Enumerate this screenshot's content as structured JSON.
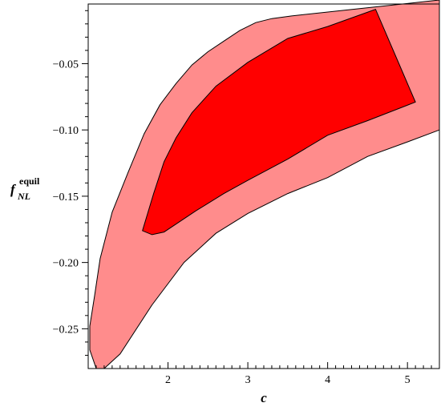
{
  "chart_data": {
    "type": "area",
    "xlabel": "c",
    "ylabel": {
      "base": "f",
      "superscript": "equil",
      "subscript": "NL"
    },
    "xlim": [
      1.0,
      5.4
    ],
    "ylim": [
      -0.28,
      -0.005
    ],
    "xticks": [
      2,
      3,
      4,
      5
    ],
    "yticks": [
      -0.05,
      -0.1,
      -0.15,
      -0.2,
      -0.25
    ],
    "xtick_labels": [
      "2",
      "3",
      "4",
      "5"
    ],
    "ytick_labels": [
      "−0.05",
      "−0.10",
      "−0.15",
      "−0.20",
      "−0.25"
    ],
    "grid": false,
    "series": [
      {
        "fill": "#ff8c8c",
        "points": [
          [
            1.1,
            -0.28
          ],
          [
            1.2,
            -0.28
          ],
          [
            1.4,
            -0.269
          ],
          [
            1.8,
            -0.232
          ],
          [
            2.2,
            -0.2
          ],
          [
            2.6,
            -0.178
          ],
          [
            3.0,
            -0.163
          ],
          [
            3.5,
            -0.148
          ],
          [
            4.0,
            -0.136
          ],
          [
            4.5,
            -0.12
          ],
          [
            5.0,
            -0.109
          ],
          [
            5.4,
            -0.1
          ],
          [
            5.4,
            -0.002
          ],
          [
            3.55,
            -0.014
          ],
          [
            3.3,
            -0.016
          ],
          [
            3.1,
            -0.019
          ],
          [
            2.9,
            -0.025
          ],
          [
            2.7,
            -0.033
          ],
          [
            2.5,
            -0.041
          ],
          [
            2.3,
            -0.051
          ],
          [
            2.1,
            -0.065
          ],
          [
            1.9,
            -0.081
          ],
          [
            1.7,
            -0.103
          ],
          [
            1.5,
            -0.132
          ],
          [
            1.3,
            -0.162
          ],
          [
            1.15,
            -0.197
          ],
          [
            1.08,
            -0.225
          ],
          [
            1.02,
            -0.248
          ],
          [
            1.02,
            -0.266
          ]
        ]
      },
      {
        "fill": "#ff0000",
        "points": [
          [
            1.68,
            -0.176
          ],
          [
            1.8,
            -0.179
          ],
          [
            1.95,
            -0.177
          ],
          [
            2.1,
            -0.171
          ],
          [
            2.35,
            -0.161
          ],
          [
            2.7,
            -0.148
          ],
          [
            3.0,
            -0.138
          ],
          [
            3.5,
            -0.122
          ],
          [
            4.0,
            -0.104
          ],
          [
            4.5,
            -0.093
          ],
          [
            5.1,
            -0.079
          ],
          [
            4.6,
            -0.009
          ],
          [
            4.0,
            -0.022
          ],
          [
            3.5,
            -0.031
          ],
          [
            3.0,
            -0.049
          ],
          [
            2.6,
            -0.067
          ],
          [
            2.3,
            -0.087
          ],
          [
            2.1,
            -0.106
          ],
          [
            1.95,
            -0.124
          ],
          [
            1.82,
            -0.148
          ]
        ]
      }
    ]
  }
}
